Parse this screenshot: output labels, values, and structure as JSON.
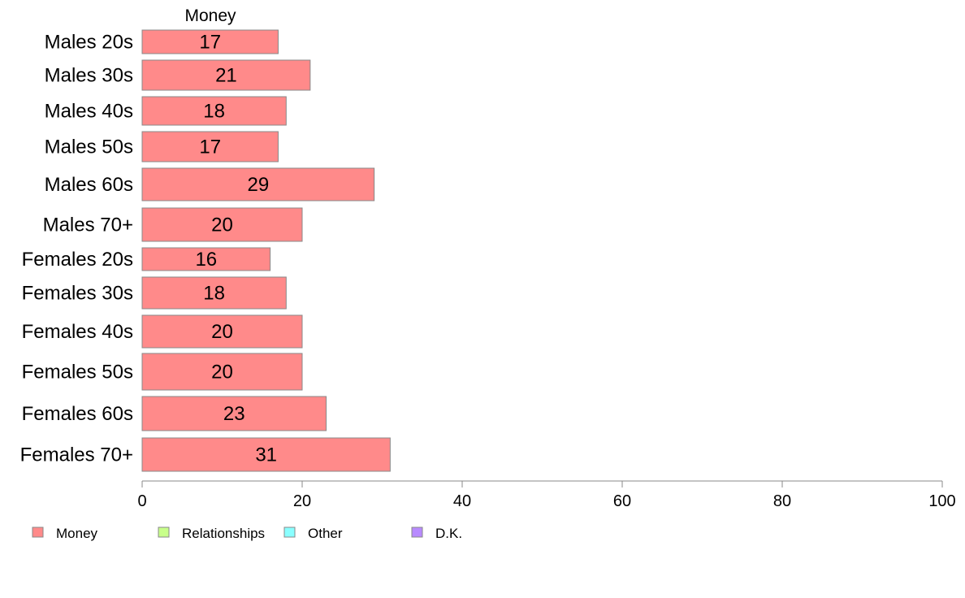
{
  "chart_data": {
    "type": "bar",
    "orientation": "horizontal",
    "categories": [
      "Males 20s",
      "Males 30s",
      "Males 40s",
      "Males 50s",
      "Males 60s",
      "Males 70+",
      "Females 20s",
      "Females 30s",
      "Females 40s",
      "Females 50s",
      "Females 60s",
      "Females 70+"
    ],
    "series": [
      {
        "name": "Money",
        "values": [
          17,
          21,
          18,
          17,
          29,
          20,
          16,
          18,
          20,
          20,
          23,
          31
        ],
        "color": "#ff8a8a"
      }
    ],
    "series_title": "Money",
    "xlim": [
      0,
      100
    ],
    "xticks": [
      0,
      20,
      40,
      60,
      80,
      100
    ],
    "grid": false,
    "legend": {
      "placement": "bottom-left",
      "entries": [
        {
          "label": "Money",
          "color": "#ff8a8a"
        },
        {
          "label": "Relationships",
          "color": "#c8ff8a"
        },
        {
          "label": "Other",
          "color": "#8affff"
        },
        {
          "label": "D.K.",
          "color": "#b88aff"
        }
      ]
    },
    "bar_edge_color": "#888888"
  }
}
